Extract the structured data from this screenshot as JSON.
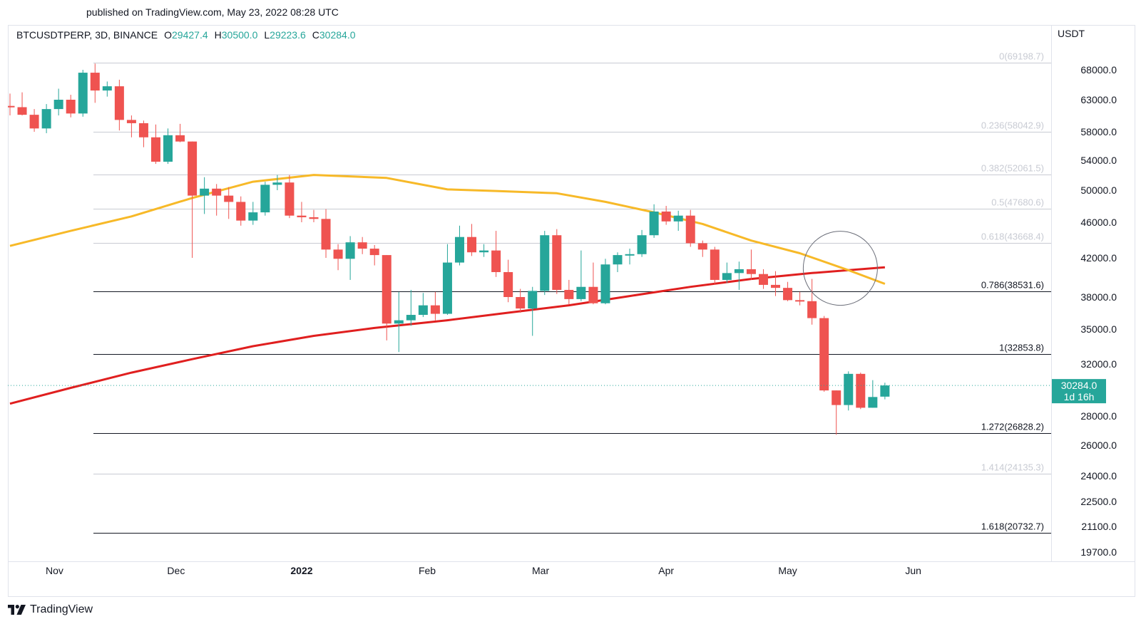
{
  "published": "published on TradingView.com, May 23, 2022 08:28 UTC",
  "header": {
    "symbol": "BTCUSDTPERP, 3D, BINANCE",
    "open_label": "O",
    "open": "29427.4",
    "high_label": "H",
    "high": "30500.0",
    "low_label": "L",
    "low": "29223.6",
    "close_label": "C",
    "close": "30284.0"
  },
  "footer": {
    "brand": "TradingView"
  },
  "colors": {
    "up": "#26a69a",
    "down": "#ef5350",
    "ma_fast": "#f7b928",
    "ma_slow": "#e01f1f",
    "fib_strong": "#131722",
    "fib_faint": "#c8cbd3",
    "last_price_bg": "#26a69a"
  },
  "chart_data": {
    "type": "candlestick",
    "currency_label": "USDT",
    "y_ticks": [
      19700,
      21100,
      22500,
      24000,
      26000,
      28000,
      30284,
      32000,
      35000,
      38000,
      42000,
      46000,
      50000,
      54000,
      58000,
      63000,
      68000
    ],
    "y_tick_labels": [
      "19700.0",
      "21100.0",
      "22500.0",
      "24000.0",
      "26000.0",
      "28000.0",
      "30284.0",
      "32000.0",
      "35000.0",
      "38000.0",
      "42000.0",
      "46000.0",
      "50000.0",
      "54000.0",
      "58000.0",
      "63000.0",
      "68000.0"
    ],
    "x_labels": [
      {
        "label": "Nov",
        "date": "2021-11-01",
        "bold": false
      },
      {
        "label": "Dec",
        "date": "2021-12-01",
        "bold": false
      },
      {
        "label": "2022",
        "date": "2022-01-01",
        "bold": true
      },
      {
        "label": "Feb",
        "date": "2022-02-01",
        "bold": false
      },
      {
        "label": "Mar",
        "date": "2022-03-01",
        "bold": false
      },
      {
        "label": "Apr",
        "date": "2022-04-01",
        "bold": false
      },
      {
        "label": "May",
        "date": "2022-05-01",
        "bold": false
      },
      {
        "label": "Jun",
        "date": "2022-06-01",
        "bold": false
      }
    ],
    "last_price": {
      "value": 30284.0,
      "label": "30284.0",
      "countdown": "1d 16h"
    },
    "fib_levels": [
      {
        "ratio": "0",
        "price": 69198.7,
        "label": "0(69198.7)",
        "strong": false
      },
      {
        "ratio": "0.236",
        "price": 58042.9,
        "label": "0.236(58042.9)",
        "strong": false
      },
      {
        "ratio": "0.382",
        "price": 52061.5,
        "label": "0.382(52061.5)",
        "strong": false
      },
      {
        "ratio": "0.5",
        "price": 47680.6,
        "label": "0.5(47680.6)",
        "strong": false
      },
      {
        "ratio": "0.618",
        "price": 43668.4,
        "label": "0.618(43668.4)",
        "strong": false
      },
      {
        "ratio": "0.786",
        "price": 38531.6,
        "label": "0.786(38531.6)",
        "strong": true
      },
      {
        "ratio": "1",
        "price": 32853.8,
        "label": "1(32853.8)",
        "strong": true
      },
      {
        "ratio": "1.272",
        "price": 26828.2,
        "label": "1.272(26828.2)",
        "strong": true
      },
      {
        "ratio": "1.414",
        "price": 24135.3,
        "label": "1.414(24135.3)",
        "strong": false
      },
      {
        "ratio": "1.618",
        "price": 20732.7,
        "label": "1.618(20732.7)",
        "strong": true
      }
    ],
    "candles": [
      {
        "date": "2021-10-21",
        "o": 62000,
        "h": 64000,
        "l": 60500,
        "c": 61800
      },
      {
        "date": "2021-10-24",
        "o": 61800,
        "h": 64200,
        "l": 60500,
        "c": 60600
      },
      {
        "date": "2021-10-27",
        "o": 60600,
        "h": 61500,
        "l": 58000,
        "c": 58500
      },
      {
        "date": "2021-10-30",
        "o": 58500,
        "h": 62300,
        "l": 57800,
        "c": 61500
      },
      {
        "date": "2021-11-02",
        "o": 61500,
        "h": 64800,
        "l": 60500,
        "c": 63000
      },
      {
        "date": "2021-11-05",
        "o": 63000,
        "h": 63800,
        "l": 60200,
        "c": 60800
      },
      {
        "date": "2021-11-08",
        "o": 60800,
        "h": 68000,
        "l": 60300,
        "c": 67500
      },
      {
        "date": "2021-11-11",
        "o": 67500,
        "h": 69000,
        "l": 62500,
        "c": 64500
      },
      {
        "date": "2021-11-14",
        "o": 64500,
        "h": 66000,
        "l": 63500,
        "c": 65200
      },
      {
        "date": "2021-11-17",
        "o": 65200,
        "h": 66300,
        "l": 58200,
        "c": 59800
      },
      {
        "date": "2021-11-20",
        "o": 59800,
        "h": 60500,
        "l": 57200,
        "c": 59300
      },
      {
        "date": "2021-11-23",
        "o": 59300,
        "h": 59700,
        "l": 55800,
        "c": 57200
      },
      {
        "date": "2021-11-26",
        "o": 57200,
        "h": 59100,
        "l": 53500,
        "c": 53800
      },
      {
        "date": "2021-11-29",
        "o": 53800,
        "h": 58500,
        "l": 53500,
        "c": 57500
      },
      {
        "date": "2021-12-02",
        "o": 57500,
        "h": 59200,
        "l": 56500,
        "c": 56600
      },
      {
        "date": "2021-12-05",
        "o": 56600,
        "h": 56600,
        "l": 42000,
        "c": 49300
      },
      {
        "date": "2021-12-08",
        "o": 49300,
        "h": 51700,
        "l": 47000,
        "c": 50200
      },
      {
        "date": "2021-12-11",
        "o": 50200,
        "h": 50800,
        "l": 46800,
        "c": 49300
      },
      {
        "date": "2021-12-14",
        "o": 49300,
        "h": 50400,
        "l": 46400,
        "c": 48500
      },
      {
        "date": "2021-12-17",
        "o": 48500,
        "h": 49200,
        "l": 45600,
        "c": 46200
      },
      {
        "date": "2021-12-20",
        "o": 46200,
        "h": 48500,
        "l": 45700,
        "c": 47200
      },
      {
        "date": "2021-12-23",
        "o": 47200,
        "h": 51100,
        "l": 46800,
        "c": 50700
      },
      {
        "date": "2021-12-26",
        "o": 50700,
        "h": 52000,
        "l": 50000,
        "c": 51000
      },
      {
        "date": "2021-12-29",
        "o": 51000,
        "h": 52000,
        "l": 46500,
        "c": 46800
      },
      {
        "date": "2022-01-01",
        "o": 46800,
        "h": 48500,
        "l": 46000,
        "c": 46600
      },
      {
        "date": "2022-01-04",
        "o": 46600,
        "h": 47500,
        "l": 46000,
        "c": 46400
      },
      {
        "date": "2022-01-07",
        "o": 46400,
        "h": 47600,
        "l": 42000,
        "c": 42900
      },
      {
        "date": "2022-01-10",
        "o": 42900,
        "h": 43500,
        "l": 40700,
        "c": 41900
      },
      {
        "date": "2022-01-13",
        "o": 41900,
        "h": 44400,
        "l": 39700,
        "c": 43700
      },
      {
        "date": "2022-01-16",
        "o": 43700,
        "h": 44300,
        "l": 42400,
        "c": 43000
      },
      {
        "date": "2022-01-19",
        "o": 43000,
        "h": 43400,
        "l": 41200,
        "c": 42300
      },
      {
        "date": "2022-01-22",
        "o": 42300,
        "h": 42300,
        "l": 34000,
        "c": 35500
      },
      {
        "date": "2022-01-25",
        "o": 35500,
        "h": 38500,
        "l": 33000,
        "c": 35800
      },
      {
        "date": "2022-01-28",
        "o": 35800,
        "h": 38700,
        "l": 35300,
        "c": 36300
      },
      {
        "date": "2022-01-31",
        "o": 36300,
        "h": 38400,
        "l": 36100,
        "c": 37200
      },
      {
        "date": "2022-02-03",
        "o": 37200,
        "h": 38500,
        "l": 35800,
        "c": 36400
      },
      {
        "date": "2022-02-06",
        "o": 36400,
        "h": 43500,
        "l": 36300,
        "c": 41500
      },
      {
        "date": "2022-02-09",
        "o": 41500,
        "h": 45600,
        "l": 41200,
        "c": 44300
      },
      {
        "date": "2022-02-12",
        "o": 44300,
        "h": 45800,
        "l": 42200,
        "c": 42600
      },
      {
        "date": "2022-02-15",
        "o": 42600,
        "h": 43500,
        "l": 42100,
        "c": 42800
      },
      {
        "date": "2022-02-18",
        "o": 42800,
        "h": 45000,
        "l": 40000,
        "c": 40500
      },
      {
        "date": "2022-02-21",
        "o": 40500,
        "h": 41800,
        "l": 37500,
        "c": 38000
      },
      {
        "date": "2022-02-24",
        "o": 38000,
        "h": 38800,
        "l": 36500,
        "c": 36900
      },
      {
        "date": "2022-02-27",
        "o": 36900,
        "h": 39000,
        "l": 34400,
        "c": 38600
      },
      {
        "date": "2022-03-02",
        "o": 38600,
        "h": 45000,
        "l": 38200,
        "c": 44500
      },
      {
        "date": "2022-03-05",
        "o": 44500,
        "h": 45200,
        "l": 38300,
        "c": 38700
      },
      {
        "date": "2022-03-08",
        "o": 38700,
        "h": 39700,
        "l": 37300,
        "c": 37800
      },
      {
        "date": "2022-03-11",
        "o": 37800,
        "h": 42800,
        "l": 37600,
        "c": 39000
      },
      {
        "date": "2022-03-14",
        "o": 39000,
        "h": 41500,
        "l": 37300,
        "c": 37400
      },
      {
        "date": "2022-03-17",
        "o": 37400,
        "h": 41900,
        "l": 37300,
        "c": 41300
      },
      {
        "date": "2022-03-20",
        "o": 41300,
        "h": 42600,
        "l": 40500,
        "c": 42300
      },
      {
        "date": "2022-03-23",
        "o": 42300,
        "h": 43000,
        "l": 41300,
        "c": 42400
      },
      {
        "date": "2022-03-26",
        "o": 42400,
        "h": 45100,
        "l": 42100,
        "c": 44500
      },
      {
        "date": "2022-03-29",
        "o": 44500,
        "h": 48200,
        "l": 44200,
        "c": 47300
      },
      {
        "date": "2022-04-01",
        "o": 47300,
        "h": 48000,
        "l": 45700,
        "c": 46100
      },
      {
        "date": "2022-04-04",
        "o": 46100,
        "h": 47400,
        "l": 45000,
        "c": 46800
      },
      {
        "date": "2022-04-07",
        "o": 46800,
        "h": 47500,
        "l": 43200,
        "c": 43600
      },
      {
        "date": "2022-04-10",
        "o": 43600,
        "h": 43900,
        "l": 42100,
        "c": 42900
      },
      {
        "date": "2022-04-13",
        "o": 42900,
        "h": 43200,
        "l": 39200,
        "c": 39700
      },
      {
        "date": "2022-04-16",
        "o": 39700,
        "h": 41500,
        "l": 39400,
        "c": 40400
      },
      {
        "date": "2022-04-19",
        "o": 40400,
        "h": 41600,
        "l": 38700,
        "c": 40800
      },
      {
        "date": "2022-04-22",
        "o": 40800,
        "h": 42900,
        "l": 39700,
        "c": 40300
      },
      {
        "date": "2022-04-25",
        "o": 40300,
        "h": 40800,
        "l": 38800,
        "c": 39200
      },
      {
        "date": "2022-04-28",
        "o": 39200,
        "h": 40600,
        "l": 38100,
        "c": 38900
      },
      {
        "date": "2022-05-01",
        "o": 38900,
        "h": 39500,
        "l": 37600,
        "c": 37700
      },
      {
        "date": "2022-05-04",
        "o": 37700,
        "h": 38500,
        "l": 37200,
        "c": 37600
      },
      {
        "date": "2022-05-07",
        "o": 37600,
        "h": 39800,
        "l": 35400,
        "c": 36000
      },
      {
        "date": "2022-05-10",
        "o": 36000,
        "h": 36200,
        "l": 29800,
        "c": 29900
      },
      {
        "date": "2022-05-13",
        "o": 29900,
        "h": 29900,
        "l": 26700,
        "c": 28800
      },
      {
        "date": "2022-05-16",
        "o": 28800,
        "h": 31400,
        "l": 28400,
        "c": 31200
      },
      {
        "date": "2022-05-19",
        "o": 31200,
        "h": 31300,
        "l": 28500,
        "c": 28600
      },
      {
        "date": "2022-05-22",
        "o": 28600,
        "h": 30700,
        "l": 28600,
        "c": 29400
      },
      {
        "date": "2022-05-25",
        "o": 29427.4,
        "h": 30500.0,
        "l": 29223.6,
        "c": 30284.0
      }
    ],
    "ma_fast": [
      {
        "date": "2021-10-21",
        "v": 43300
      },
      {
        "date": "2021-11-05",
        "v": 45000
      },
      {
        "date": "2021-11-20",
        "v": 46700
      },
      {
        "date": "2021-12-05",
        "v": 49000
      },
      {
        "date": "2021-12-20",
        "v": 51100
      },
      {
        "date": "2022-01-04",
        "v": 52000
      },
      {
        "date": "2022-01-22",
        "v": 51600
      },
      {
        "date": "2022-02-06",
        "v": 50100
      },
      {
        "date": "2022-02-18",
        "v": 49900
      },
      {
        "date": "2022-03-05",
        "v": 49600
      },
      {
        "date": "2022-03-17",
        "v": 48500
      },
      {
        "date": "2022-03-29",
        "v": 47200
      },
      {
        "date": "2022-04-10",
        "v": 45800
      },
      {
        "date": "2022-04-22",
        "v": 43900
      },
      {
        "date": "2022-05-04",
        "v": 42500
      },
      {
        "date": "2022-05-16",
        "v": 40700
      },
      {
        "date": "2022-05-25",
        "v": 39300
      }
    ],
    "ma_slow": [
      {
        "date": "2021-10-21",
        "v": 28900
      },
      {
        "date": "2021-11-05",
        "v": 30100
      },
      {
        "date": "2021-11-20",
        "v": 31300
      },
      {
        "date": "2021-12-05",
        "v": 32400
      },
      {
        "date": "2021-12-20",
        "v": 33500
      },
      {
        "date": "2022-01-04",
        "v": 34400
      },
      {
        "date": "2022-01-19",
        "v": 35100
      },
      {
        "date": "2022-02-06",
        "v": 35800
      },
      {
        "date": "2022-02-21",
        "v": 36500
      },
      {
        "date": "2022-03-08",
        "v": 37200
      },
      {
        "date": "2022-03-23",
        "v": 38100
      },
      {
        "date": "2022-04-07",
        "v": 39000
      },
      {
        "date": "2022-04-22",
        "v": 39800
      },
      {
        "date": "2022-05-07",
        "v": 40400
      },
      {
        "date": "2022-05-25",
        "v": 41000
      }
    ],
    "annotation_circle": {
      "center_date": "2022-05-14",
      "center_price": 40900
    }
  }
}
